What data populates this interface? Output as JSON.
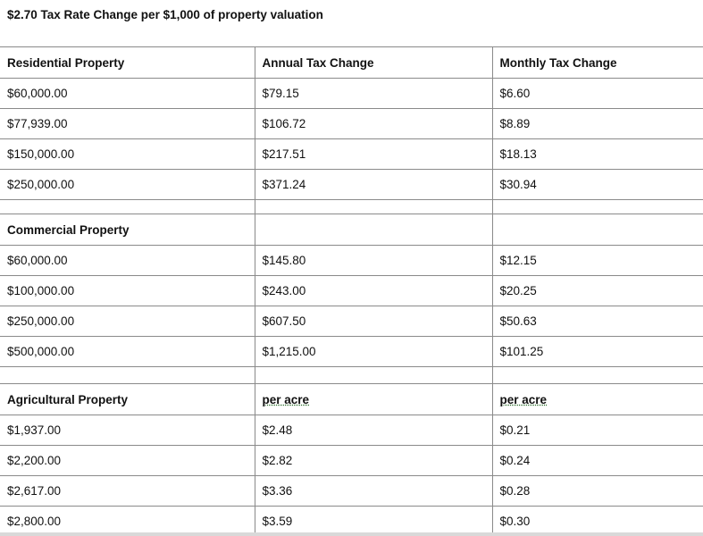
{
  "title": "$2.70 Tax Rate Change per $1,000 of property valuation",
  "sections": [
    {
      "header": [
        "Residential Property",
        "Annual Tax Change",
        "Monthly Tax Change"
      ],
      "rows": [
        [
          "$60,000.00",
          "$79.15",
          "$6.60"
        ],
        [
          "$77,939.00",
          "$106.72",
          "$8.89"
        ],
        [
          "$150,000.00",
          "$217.51",
          "$18.13"
        ],
        [
          "$250,000.00",
          "$371.24",
          "$30.94"
        ]
      ]
    },
    {
      "header": [
        "Commercial Property",
        "",
        ""
      ],
      "rows": [
        [
          "$60,000.00",
          "$145.80",
          "$12.15"
        ],
        [
          "$100,000.00",
          "$243.00",
          "$20.25"
        ],
        [
          "$250,000.00",
          "$607.50",
          "$50.63"
        ],
        [
          "$500,000.00",
          "$1,215.00",
          "$101.25"
        ]
      ]
    },
    {
      "header": [
        "Agricultural Property",
        "per acre",
        "per acre"
      ],
      "rows": [
        [
          "$1,937.00",
          "$2.48",
          "$0.21"
        ],
        [
          "$2,200.00",
          "$2.82",
          "$0.24"
        ],
        [
          "$2,617.00",
          "$3.36",
          "$0.28"
        ],
        [
          "$2,800.00",
          "$3.59",
          "$0.30"
        ]
      ]
    }
  ]
}
